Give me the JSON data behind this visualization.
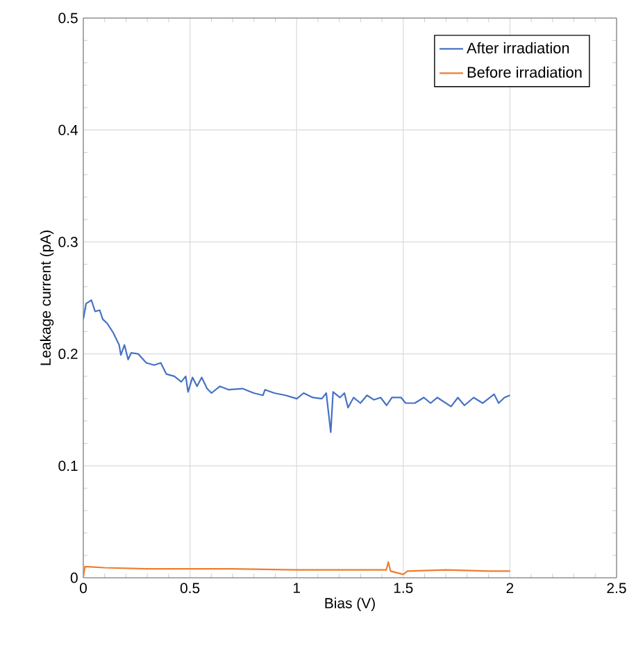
{
  "chart_data": {
    "type": "line",
    "xlabel": "Bias (V)",
    "ylabel": "Leakage current (pA)",
    "xlim": [
      0,
      2.5
    ],
    "xticks": [
      0,
      0.5,
      1,
      1.5,
      2,
      2.5
    ],
    "ylim": [
      0,
      0.5
    ],
    "yticks": [
      0,
      0.1,
      0.2,
      0.3,
      0.4,
      0.5
    ],
    "grid": true,
    "legend": "top right",
    "marker": "none",
    "line_style": "solid",
    "series": [
      {
        "name": "After irradiation",
        "color": "#4472c4",
        "x": [
          0,
          0.013,
          0.038,
          0.055,
          0.077,
          0.091,
          0.113,
          0.14,
          0.168,
          0.176,
          0.193,
          0.21,
          0.225,
          0.257,
          0.295,
          0.332,
          0.363,
          0.389,
          0.427,
          0.459,
          0.48,
          0.491,
          0.512,
          0.533,
          0.555,
          0.58,
          0.601,
          0.64,
          0.682,
          0.746,
          0.799,
          0.842,
          0.852,
          0.895,
          0.948,
          1.001,
          1.033,
          1.076,
          1.118,
          1.139,
          1.16,
          1.171,
          1.203,
          1.224,
          1.241,
          1.267,
          1.299,
          1.33,
          1.362,
          1.394,
          1.422,
          1.447,
          1.49,
          1.511,
          1.554,
          1.596,
          1.628,
          1.66,
          1.724,
          1.756,
          1.787,
          1.83,
          1.872,
          1.926,
          1.947,
          1.974,
          2.0
        ],
        "values": [
          0.231,
          0.245,
          0.248,
          0.238,
          0.239,
          0.231,
          0.227,
          0.219,
          0.208,
          0.199,
          0.208,
          0.195,
          0.201,
          0.2,
          0.192,
          0.19,
          0.192,
          0.182,
          0.18,
          0.175,
          0.18,
          0.166,
          0.179,
          0.171,
          0.179,
          0.169,
          0.165,
          0.171,
          0.168,
          0.169,
          0.165,
          0.163,
          0.168,
          0.165,
          0.163,
          0.16,
          0.165,
          0.161,
          0.16,
          0.165,
          0.13,
          0.166,
          0.161,
          0.165,
          0.152,
          0.161,
          0.156,
          0.163,
          0.159,
          0.161,
          0.154,
          0.161,
          0.161,
          0.156,
          0.156,
          0.161,
          0.156,
          0.161,
          0.153,
          0.161,
          0.154,
          0.161,
          0.156,
          0.164,
          0.156,
          0.161,
          0.163
        ]
      },
      {
        "name": "Before irradiation",
        "color": "#ed7d31",
        "x": [
          0,
          0.008,
          0.1,
          0.3,
          0.5,
          0.7,
          1.0,
          1.2,
          1.42,
          1.43,
          1.44,
          1.5,
          1.52,
          1.7,
          1.9,
          2.0
        ],
        "values": [
          0.001,
          0.01,
          0.009,
          0.008,
          0.008,
          0.008,
          0.007,
          0.007,
          0.007,
          0.014,
          0.006,
          0.003,
          0.006,
          0.007,
          0.006,
          0.006
        ]
      }
    ]
  }
}
